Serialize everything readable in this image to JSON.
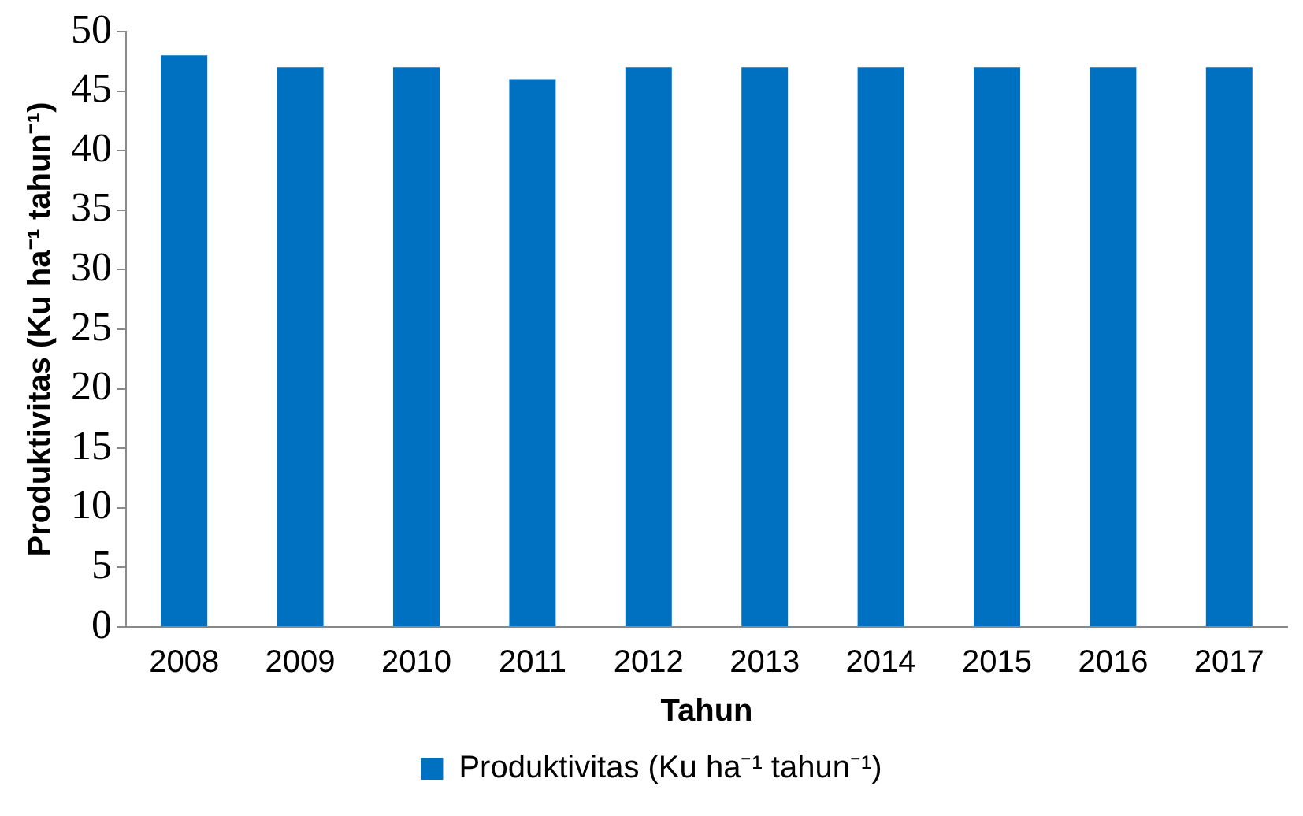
{
  "chart_data": {
    "type": "bar",
    "xlabel": "Tahun",
    "ylabel": "Produktivitas (Ku ha⁻¹ tahun⁻¹)",
    "categories": [
      "2008",
      "2009",
      "2010",
      "2011",
      "2012",
      "2013",
      "2014",
      "2015",
      "2016",
      "2017"
    ],
    "series": [
      {
        "name": "Produktivitas (Ku ha⁻¹ tahun⁻¹)",
        "color": "#0070c0",
        "values": [
          48,
          47,
          47,
          46,
          47,
          47,
          47,
          47,
          47,
          47
        ]
      }
    ],
    "ylim": [
      0,
      50
    ],
    "yticks": [
      0,
      5,
      10,
      15,
      20,
      25,
      30,
      35,
      40,
      45,
      50
    ],
    "grid": false,
    "legend": "bottom"
  }
}
